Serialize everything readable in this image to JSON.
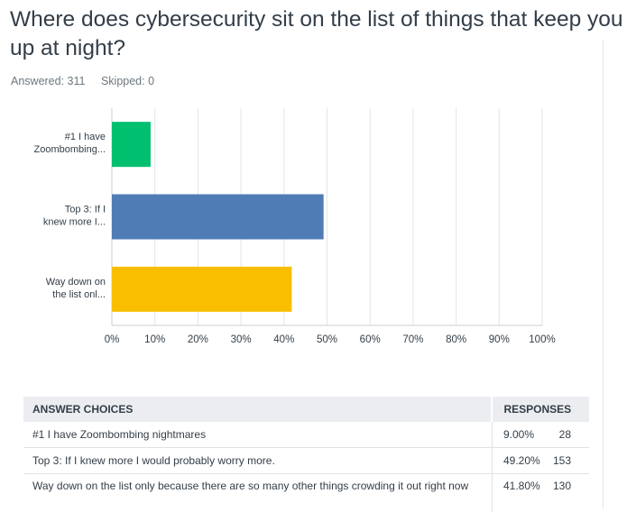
{
  "question": {
    "title": "Where does cybersecurity sit on the list of things that keep you up at night?",
    "answered_label": "Answered: 311",
    "skipped_label": "Skipped: 0"
  },
  "chart_data": {
    "type": "bar",
    "orientation": "horizontal",
    "categories": [
      "#1 I have Zoombombing...",
      "Top 3: If I knew more I...",
      "Way down on the list onl..."
    ],
    "category_lines": [
      [
        "#1 I have",
        "Zoombombing..."
      ],
      [
        "Top 3: If I",
        "knew more I..."
      ],
      [
        "Way down on",
        "the list onl..."
      ]
    ],
    "values": [
      9.0,
      49.2,
      41.8
    ],
    "colors": [
      "#00bf6f",
      "#507cb6",
      "#f9be00"
    ],
    "x_ticks": [
      "0%",
      "10%",
      "20%",
      "30%",
      "40%",
      "50%",
      "60%",
      "70%",
      "80%",
      "90%",
      "100%"
    ],
    "xlim": [
      0,
      100
    ],
    "grid": true,
    "title": "",
    "xlabel": "",
    "ylabel": ""
  },
  "table": {
    "header_choices": "ANSWER CHOICES",
    "header_responses": "RESPONSES",
    "rows": [
      {
        "choice": "#1 I have Zoombombing nightmares",
        "percent": "9.00%",
        "count": "28"
      },
      {
        "choice": "Top 3: If I knew more I would probably worry more.",
        "percent": "49.20%",
        "count": "153"
      },
      {
        "choice": "Way down on the list only because there are so many other things crowding it out right now",
        "percent": "41.80%",
        "count": "130"
      }
    ]
  }
}
